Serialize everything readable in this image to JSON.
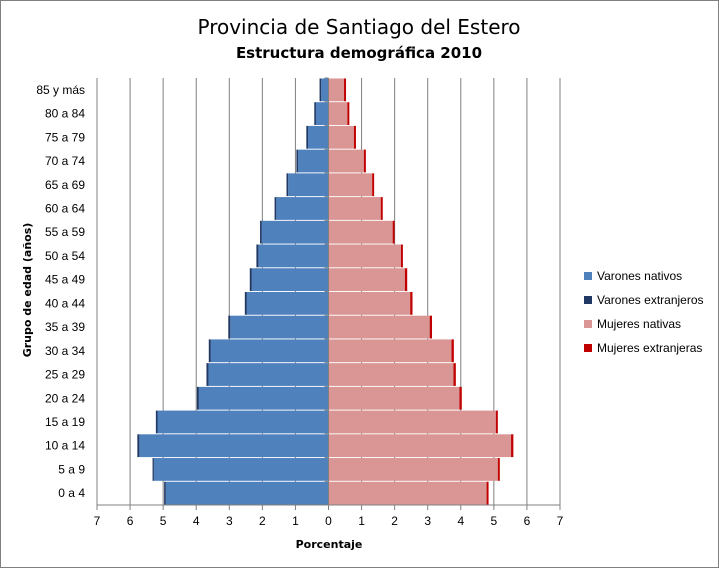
{
  "chart_data": {
    "type": "bar",
    "orientation": "horizontal-population-pyramid",
    "title": "Provincia de Santiago del Estero",
    "subtitle": "Estructura demográfica 2010",
    "xlabel": "Porcentaje",
    "ylabel": "Grupo de edad (años)",
    "xlim": [
      -7,
      7
    ],
    "x_ticks": [
      -7,
      -6,
      -5,
      -4,
      -3,
      -2,
      -1,
      0,
      1,
      2,
      3,
      4,
      5,
      6,
      7
    ],
    "x_tick_labels": [
      "7",
      "6",
      "5",
      "4",
      "3",
      "2",
      "1",
      "0",
      "1",
      "2",
      "3",
      "4",
      "5",
      "6",
      "7"
    ],
    "grid": "vertical",
    "legend_position": "right",
    "categories": [
      "0 a 4",
      "5 a 9",
      "10 a 14",
      "15 a 19",
      "20 a 24",
      "25 a 29",
      "30 a 34",
      "35 a 39",
      "40 a 44",
      "45 a 49",
      "50 a 54",
      "55 a 59",
      "60 a 64",
      "65 a 69",
      "70 a 74",
      "75 a 79",
      "80 a 84",
      "85 y más"
    ],
    "series": [
      {
        "name": "Varones nativos",
        "color": "#4F81BD",
        "side": "left",
        "values": [
          4.92,
          5.28,
          5.72,
          5.17,
          3.92,
          3.63,
          3.56,
          2.97,
          2.47,
          2.32,
          2.12,
          2.02,
          1.58,
          1.22,
          0.92,
          0.62,
          0.38,
          0.22
        ]
      },
      {
        "name": "Varones extranjeros",
        "color": "#1F3864",
        "side": "left",
        "values": [
          0.05,
          0.04,
          0.06,
          0.05,
          0.06,
          0.06,
          0.06,
          0.06,
          0.06,
          0.06,
          0.06,
          0.05,
          0.05,
          0.05,
          0.05,
          0.05,
          0.05,
          0.05
        ]
      },
      {
        "name": "Mujeres nativas",
        "color": "#D99694",
        "side": "right",
        "values": [
          4.78,
          5.12,
          5.52,
          5.06,
          3.96,
          3.78,
          3.72,
          3.06,
          2.47,
          2.31,
          2.19,
          1.94,
          1.58,
          1.32,
          1.07,
          0.77,
          0.57,
          0.47
        ]
      },
      {
        "name": "Mujeres extranjeras",
        "color": "#C00000",
        "side": "right",
        "values": [
          0.06,
          0.06,
          0.07,
          0.06,
          0.07,
          0.07,
          0.07,
          0.07,
          0.07,
          0.07,
          0.06,
          0.06,
          0.06,
          0.06,
          0.06,
          0.06,
          0.06,
          0.06
        ]
      }
    ]
  }
}
